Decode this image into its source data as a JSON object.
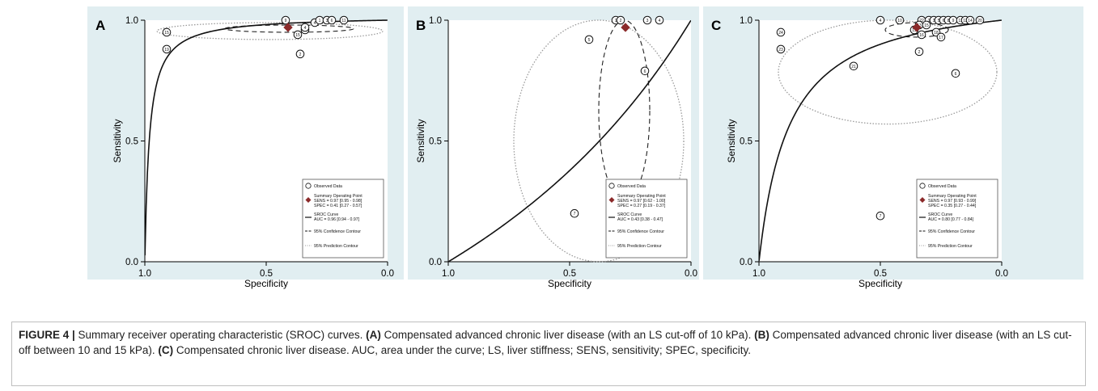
{
  "colors": {
    "panel_bg": "#e1eef1",
    "curve": "#111111",
    "summary_point": "#8b2a2a",
    "prediction": "#9a9a9a"
  },
  "legend": {
    "observed": "Observed Data",
    "summary": "Summary Operating Point",
    "sroc": "SROC Curve",
    "confidence": "95% Confidence Contour",
    "prediction": "95% Prediction Contour"
  },
  "caption": {
    "label": "FIGURE 4 |",
    "text": " Summary receiver operating characteristic (SROC) curves. ",
    "a_tag": "(A)",
    "a_text": " Compensated advanced chronic liver disease (with an LS cut-off of 10 kPa). ",
    "b_tag": "(B)",
    "b_text": " Compensated advanced chronic liver disease (with an LS cut-off between 10 and 15 kPa). ",
    "c_tag": "(C)",
    "c_text": " Compensated chronic liver disease. AUC, area under the curve; LS, liver stiffness; SENS, sensitivity; SPEC, specificity."
  },
  "chart_data": [
    {
      "type": "scatter",
      "panel": "A",
      "xlabel": "Specificity",
      "ylabel": "Sensitivity",
      "xlim": [
        1.0,
        0.0
      ],
      "ylim": [
        0.0,
        1.0
      ],
      "xticks": [
        "1.0",
        "0.5",
        "0.0"
      ],
      "yticks": [
        "0.0",
        "0.5",
        "1.0"
      ],
      "legend_lines": [
        "SENS = 0.97 [0.95 - 0.98]",
        "SPEC = 0.41 [0.27 - 0.57]",
        "AUC = 0.96 [0.94 - 0.97]"
      ],
      "summary": {
        "spec": 0.41,
        "sens": 0.97
      },
      "sroc": {
        "a": 4.0
      },
      "confidence": {
        "spec": [
          0.14,
          0.67
        ],
        "sens": [
          0.95,
          0.98
        ]
      },
      "prediction": {
        "spec": [
          0.02,
          0.95
        ],
        "sens": [
          0.92,
          0.99
        ]
      },
      "observed": [
        {
          "id": "15",
          "spec": 0.91,
          "sens": 0.95
        },
        {
          "id": "19",
          "spec": 0.91,
          "sens": 0.88
        },
        {
          "id": "9",
          "spec": 0.42,
          "sens": 1.0
        },
        {
          "id": "4",
          "spec": 0.3,
          "sens": 0.99
        },
        {
          "id": "1",
          "spec": 0.28,
          "sens": 1.0
        },
        {
          "id": "3",
          "spec": 0.25,
          "sens": 1.0
        },
        {
          "id": "6",
          "spec": 0.23,
          "sens": 1.0
        },
        {
          "id": "11",
          "spec": 0.18,
          "sens": 1.0
        },
        {
          "id": "12",
          "spec": 0.34,
          "sens": 0.96
        },
        {
          "id": "15",
          "spec": 0.37,
          "sens": 0.94
        },
        {
          "id": "4",
          "spec": 0.34,
          "sens": 0.97
        },
        {
          "id": "2",
          "spec": 0.36,
          "sens": 0.86
        }
      ]
    },
    {
      "type": "scatter",
      "panel": "B",
      "xlabel": "Specificity",
      "ylabel": "Sensitivity",
      "xlim": [
        1.0,
        0.0
      ],
      "ylim": [
        0.0,
        1.0
      ],
      "xticks": [
        "1.0",
        "0.5",
        "0.0"
      ],
      "yticks": [
        "0.0",
        "0.5",
        "1.0"
      ],
      "legend_lines": [
        "SENS = 0.97 [0.62 - 1.00]",
        "SPEC = 0.27 [0.19 - 0.37]",
        "AUC = 0.43 [0.38 - 0.47]"
      ],
      "summary": {
        "spec": 0.27,
        "sens": 0.97
      },
      "sroc": {
        "a": -0.5
      },
      "confidence": {
        "spec": [
          0.17,
          0.38
        ],
        "sens": [
          0.25,
          1.0
        ]
      },
      "prediction": {
        "spec": [
          0.03,
          0.73
        ],
        "sens": [
          0.0,
          1.0
        ]
      },
      "observed": [
        {
          "id": "5",
          "spec": 0.42,
          "sens": 0.92
        },
        {
          "id": "1",
          "spec": 0.31,
          "sens": 1.0
        },
        {
          "id": "2",
          "spec": 0.29,
          "sens": 1.0
        },
        {
          "id": "3",
          "spec": 0.18,
          "sens": 1.0
        },
        {
          "id": "4",
          "spec": 0.13,
          "sens": 1.0
        },
        {
          "id": "6",
          "spec": 0.19,
          "sens": 0.79
        },
        {
          "id": "7",
          "spec": 0.48,
          "sens": 0.2
        }
      ]
    },
    {
      "type": "scatter",
      "panel": "C",
      "xlabel": "Specificity",
      "ylabel": "Sensitivity",
      "xlim": [
        1.0,
        0.0
      ],
      "ylim": [
        0.0,
        1.0
      ],
      "xticks": [
        "1.0",
        "0.5",
        "0.0"
      ],
      "yticks": [
        "0.0",
        "0.5",
        "1.0"
      ],
      "legend_lines": [
        "SENS = 0.97 [0.93 - 0.99]",
        "SPEC = 0.35 [0.27 - 0.44]",
        "AUC = 0.80 [0.77 - 0.84]"
      ],
      "summary": {
        "spec": 0.35,
        "sens": 0.97
      },
      "sroc": {
        "a": 2.2
      },
      "confidence": {
        "spec": [
          0.22,
          0.48
        ],
        "sens": [
          0.93,
          0.99
        ]
      },
      "prediction": {
        "spec": [
          0.02,
          0.92
        ],
        "sens": [
          0.57,
          1.0
        ]
      },
      "observed": [
        {
          "id": "24",
          "spec": 0.91,
          "sens": 0.95
        },
        {
          "id": "23",
          "spec": 0.91,
          "sens": 0.88
        },
        {
          "id": "4",
          "spec": 0.5,
          "sens": 1.0
        },
        {
          "id": "10",
          "spec": 0.42,
          "sens": 1.0
        },
        {
          "id": "22",
          "spec": 0.33,
          "sens": 1.0
        },
        {
          "id": "1",
          "spec": 0.3,
          "sens": 1.0
        },
        {
          "id": "3",
          "spec": 0.28,
          "sens": 1.0
        },
        {
          "id": "5",
          "spec": 0.26,
          "sens": 1.0
        },
        {
          "id": "6",
          "spec": 0.24,
          "sens": 1.0
        },
        {
          "id": "8",
          "spec": 0.22,
          "sens": 1.0
        },
        {
          "id": "9",
          "spec": 0.2,
          "sens": 1.0
        },
        {
          "id": "11",
          "spec": 0.17,
          "sens": 1.0
        },
        {
          "id": "12",
          "spec": 0.15,
          "sens": 1.0
        },
        {
          "id": "14",
          "spec": 0.13,
          "sens": 1.0
        },
        {
          "id": "20",
          "spec": 0.09,
          "sens": 1.0
        },
        {
          "id": "13",
          "spec": 0.34,
          "sens": 0.98
        },
        {
          "id": "15",
          "spec": 0.31,
          "sens": 0.98
        },
        {
          "id": "19",
          "spec": 0.36,
          "sens": 0.96
        },
        {
          "id": "16",
          "spec": 0.33,
          "sens": 0.94
        },
        {
          "id": "18",
          "spec": 0.27,
          "sens": 0.95
        },
        {
          "id": "17",
          "spec": 0.25,
          "sens": 0.93
        },
        {
          "id": "2",
          "spec": 0.34,
          "sens": 0.87
        },
        {
          "id": "21",
          "spec": 0.61,
          "sens": 0.81
        },
        {
          "id": "6",
          "spec": 0.19,
          "sens": 0.78
        },
        {
          "id": "7",
          "spec": 0.5,
          "sens": 0.19
        }
      ]
    }
  ]
}
